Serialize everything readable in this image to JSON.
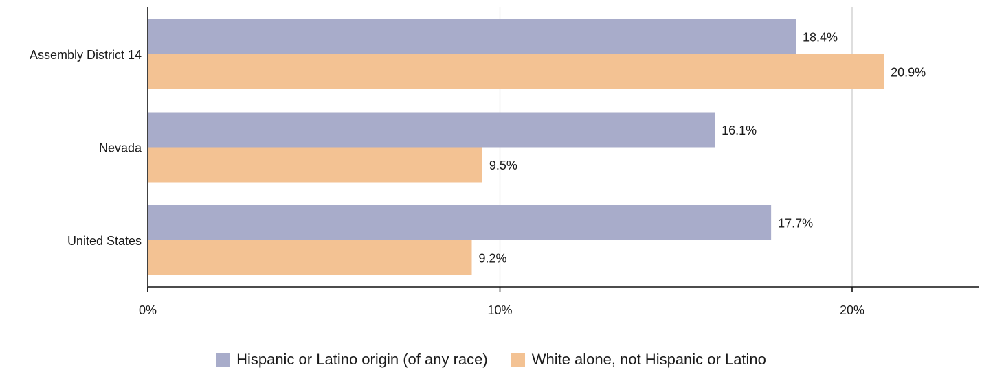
{
  "chart_data": {
    "type": "bar",
    "orientation": "horizontal",
    "categories": [
      "Assembly District 14",
      "Nevada",
      "United States"
    ],
    "series": [
      {
        "name": "Hispanic or Latino origin (of any race)",
        "values": [
          18.4,
          16.1,
          17.7
        ],
        "labels": [
          "18.4%",
          "16.1%",
          "17.7%"
        ],
        "color": "#a8acca"
      },
      {
        "name": "White alone, not Hispanic or Latino",
        "values": [
          20.9,
          9.5,
          9.2
        ],
        "labels": [
          "20.9%",
          "9.5%",
          "9.2%"
        ],
        "color": "#f3c293"
      }
    ],
    "x_ticks": [
      0,
      10,
      20
    ],
    "x_tick_labels": [
      "0%",
      "10%",
      "20%"
    ],
    "xlim": [
      0,
      23.6
    ],
    "grid": true,
    "legend_position": "bottom"
  }
}
